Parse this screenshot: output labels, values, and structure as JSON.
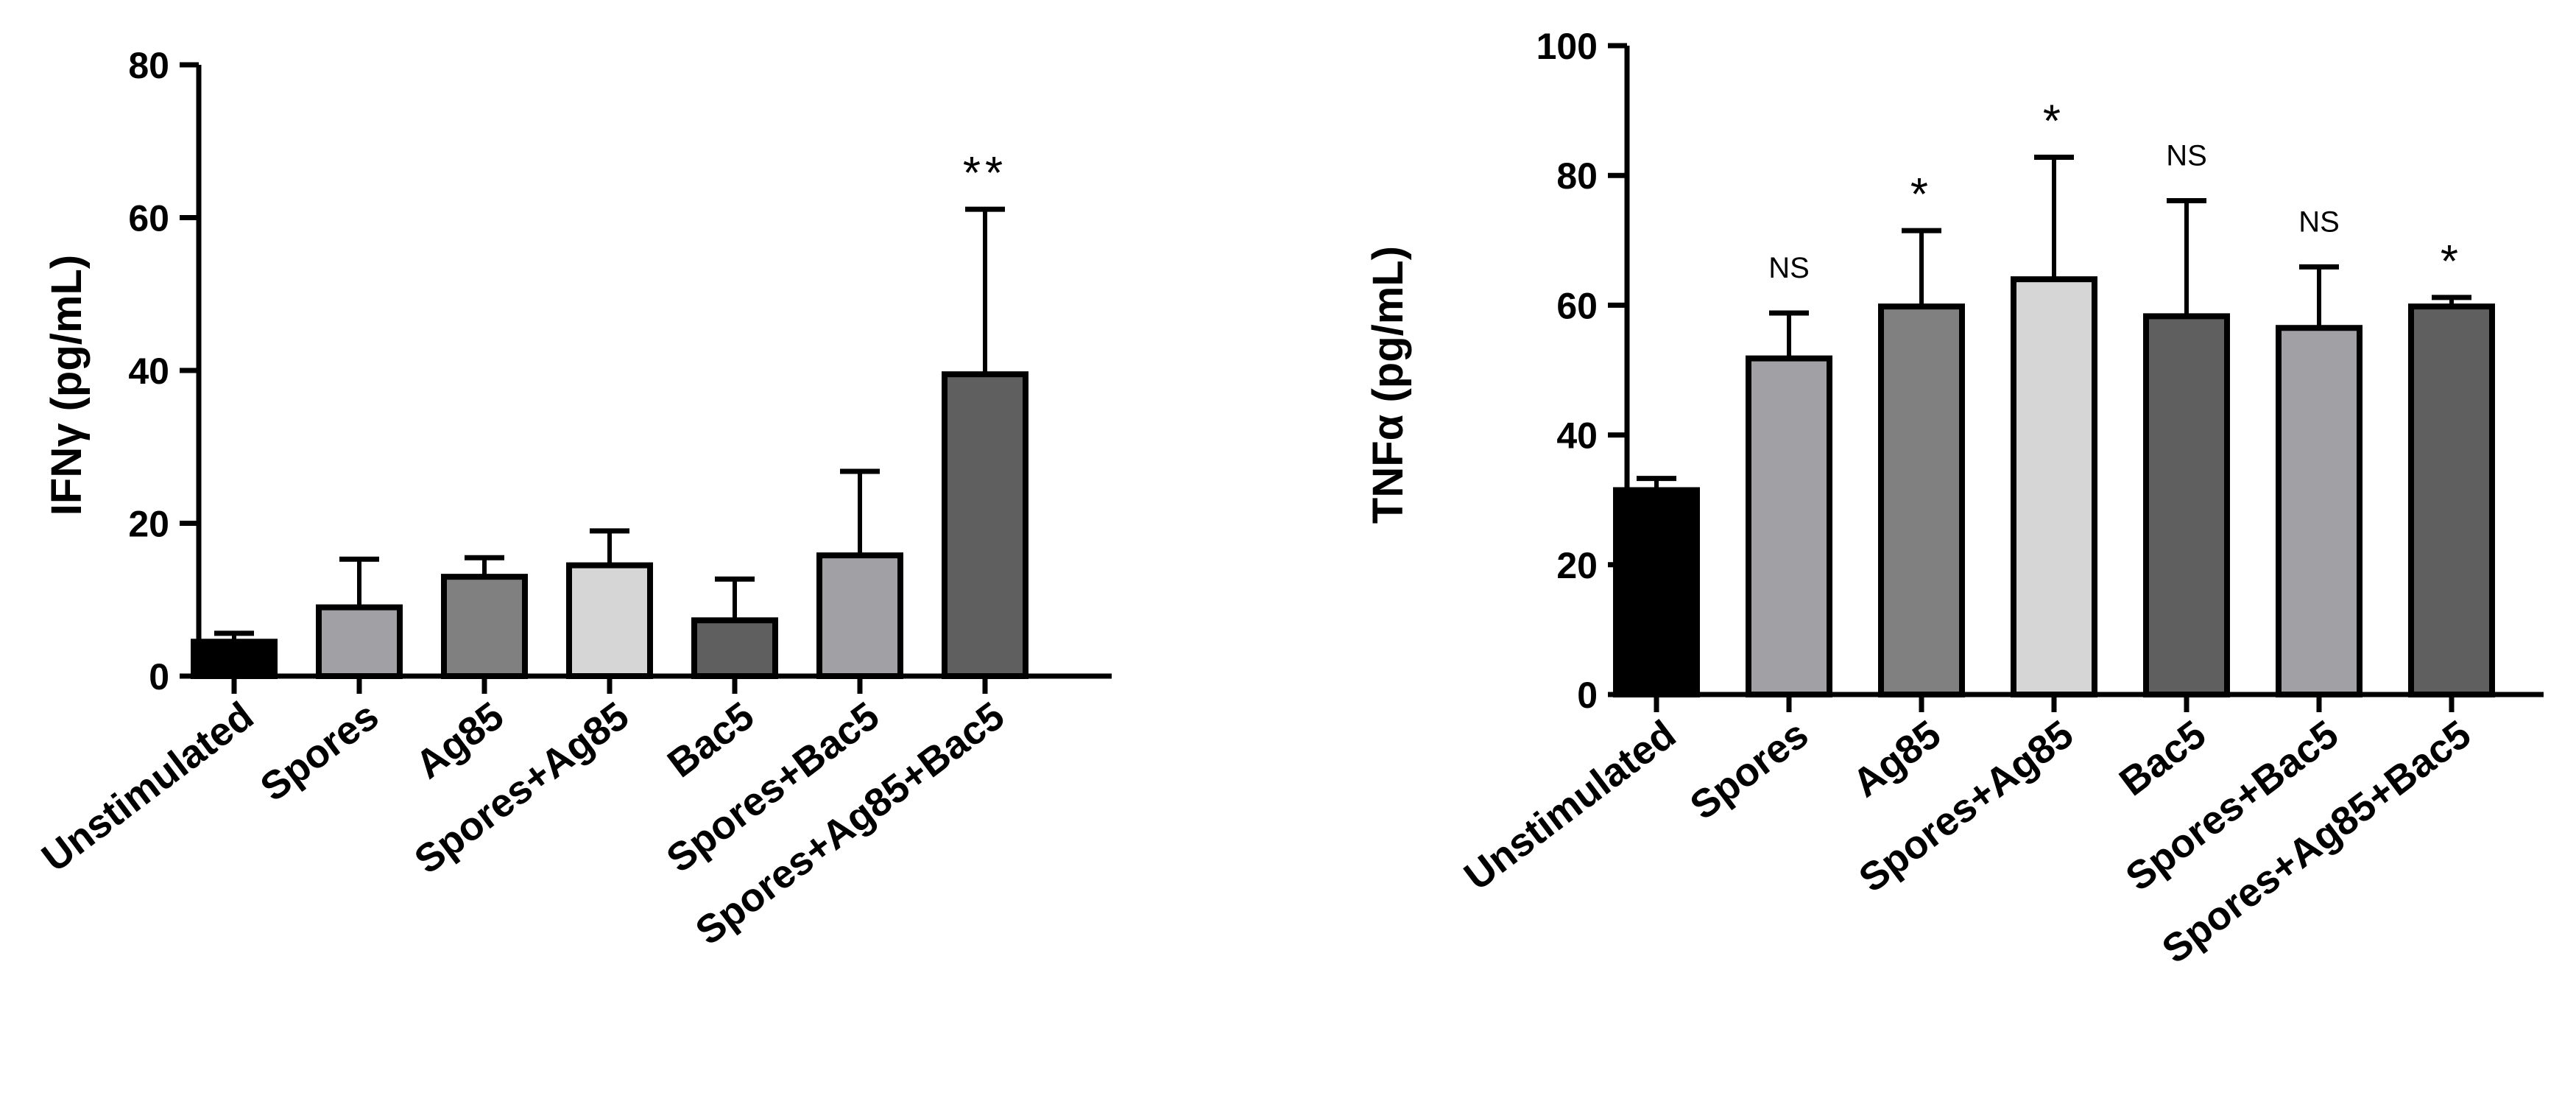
{
  "chart_data": [
    {
      "type": "bar",
      "title": "",
      "xlabel": "",
      "ylabel": "IFNγ (pg/mL)",
      "ylim": [
        0,
        80
      ],
      "yticks": [
        0,
        20,
        40,
        60,
        80
      ],
      "categories": [
        "Unstimulated",
        "Spores",
        "Ag85",
        "Spores+Ag85",
        "Bac5",
        "Spores+Bac5",
        "Spores+Ag85+Bac5"
      ],
      "values": [
        4.5,
        9,
        13,
        14.5,
        7.3,
        15.8,
        39.5
      ],
      "errors": [
        1.1,
        6.3,
        2.5,
        4.5,
        5.4,
        11,
        21.6
      ],
      "colors": [
        "#000000",
        "#a0a0a5",
        "#808080",
        "#d6d6d6",
        "#5f5f5f",
        "#a0a0a5",
        "#5f5f5f"
      ],
      "annotations": [
        "",
        "",
        "",
        "",
        "",
        "",
        "**"
      ]
    },
    {
      "type": "bar",
      "title": "",
      "xlabel": "",
      "ylabel": "TNFα (pg/mL)",
      "ylim": [
        0,
        100
      ],
      "yticks": [
        0,
        20,
        40,
        60,
        80,
        100
      ],
      "categories": [
        "Unstimulated",
        "Spores",
        "Ag85",
        "Spores+Ag85",
        "Bac5",
        "Spores+Bac5",
        "Spores+Ag85+Bac5"
      ],
      "values": [
        31.5,
        51.8,
        59.8,
        64,
        58.3,
        56.5,
        59.8
      ],
      "errors": [
        1.8,
        7,
        11.7,
        18.8,
        17.8,
        9.4,
        1.4
      ],
      "colors": [
        "#000000",
        "#a0a0a5",
        "#808080",
        "#d6d6d6",
        "#5f5f5f",
        "#a0a0a5",
        "#5f5f5f"
      ],
      "annotations": [
        "",
        "NS",
        "*",
        "*",
        "NS",
        "NS",
        "*"
      ]
    }
  ]
}
